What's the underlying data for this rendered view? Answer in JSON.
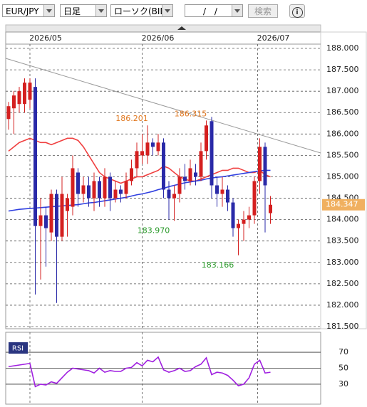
{
  "toolbar": {
    "pair": "EUR/JPY",
    "period": "日足",
    "chart_kind": "ローソク(BID)",
    "date": "/ /",
    "search": "検索",
    "info": "i"
  },
  "chart_data": {
    "type": "candlestick",
    "categories": [
      null,
      null,
      null,
      null,
      null,
      null,
      null,
      null,
      null,
      null,
      null,
      null,
      null,
      null,
      null,
      null,
      null,
      null,
      null,
      null,
      null,
      null,
      null,
      null,
      null,
      null,
      null,
      null,
      null,
      null,
      null,
      null,
      null,
      null,
      null,
      null,
      null,
      null,
      null,
      null,
      null,
      null,
      null,
      null,
      null,
      null,
      null,
      null,
      null,
      null
    ],
    "xticks": [
      {
        "value": 4,
        "label": "2026/05"
      },
      {
        "value": 25,
        "label": "2026/06"
      },
      {
        "value": 46.6,
        "label": "2026/07"
      }
    ],
    "candles": [
      {
        "open": 186.35,
        "high": 186.75,
        "low": 186.1,
        "close": 186.65
      },
      {
        "open": 186.6,
        "high": 187.0,
        "low": 186.0,
        "close": 186.9
      },
      {
        "open": 186.7,
        "high": 187.1,
        "low": 186.5,
        "close": 187.0
      },
      {
        "open": 186.7,
        "high": 187.3,
        "low": 186.5,
        "close": 187.2
      },
      {
        "open": 186.8,
        "high": 187.3,
        "low": 186.6,
        "close": 187.2
      },
      {
        "open": 187.1,
        "high": 187.3,
        "low": 182.25,
        "close": 183.85
      },
      {
        "open": 183.85,
        "high": 184.5,
        "low": 182.6,
        "close": 184.1
      },
      {
        "open": 184.1,
        "high": 184.3,
        "low": 182.9,
        "close": 183.8
      },
      {
        "open": 183.7,
        "high": 184.7,
        "low": 183.5,
        "close": 184.6
      },
      {
        "open": 184.6,
        "high": 184.7,
        "low": 182.052,
        "close": 183.6
      },
      {
        "open": 183.6,
        "high": 185.0,
        "low": 183.5,
        "close": 184.6
      },
      {
        "open": 184.2,
        "high": 184.6,
        "low": 183.6,
        "close": 184.5
      },
      {
        "open": 184.3,
        "high": 185.5,
        "low": 184.1,
        "close": 185.2
      },
      {
        "open": 185.1,
        "high": 185.2,
        "low": 184.3,
        "close": 184.6
      },
      {
        "open": 184.6,
        "high": 185.0,
        "low": 184.4,
        "close": 184.8
      },
      {
        "open": 184.8,
        "high": 185.0,
        "low": 184.3,
        "close": 184.5
      },
      {
        "open": 184.5,
        "high": 185.1,
        "low": 184.2,
        "close": 184.9
      },
      {
        "open": 184.9,
        "high": 185.0,
        "low": 184.3,
        "close": 184.5
      },
      {
        "open": 184.5,
        "high": 185.2,
        "low": 184.3,
        "close": 185.0
      },
      {
        "open": 185.0,
        "high": 185.1,
        "low": 184.2,
        "close": 184.5
      },
      {
        "open": 184.5,
        "high": 184.9,
        "low": 184.4,
        "close": 184.7
      },
      {
        "open": 184.7,
        "high": 184.8,
        "low": 184.4,
        "close": 184.6
      },
      {
        "open": 184.6,
        "high": 185.1,
        "low": 184.5,
        "close": 184.9
      },
      {
        "open": 184.9,
        "high": 185.4,
        "low": 184.8,
        "close": 185.2
      },
      {
        "open": 185.2,
        "high": 185.8,
        "low": 185.0,
        "close": 185.6
      },
      {
        "open": 185.5,
        "high": 186.0,
        "low": 185.3,
        "close": 185.6
      },
      {
        "open": 185.5,
        "high": 186.201,
        "low": 185.3,
        "close": 185.8,
        "high_label": "186.201"
      },
      {
        "open": 185.8,
        "high": 185.9,
        "low": 185.5,
        "close": 185.7
      },
      {
        "open": 185.6,
        "high": 186.0,
        "low": 185.5,
        "close": 185.8
      },
      {
        "open": 185.8,
        "high": 185.9,
        "low": 184.5,
        "close": 184.7
      },
      {
        "open": 184.7,
        "high": 184.9,
        "low": 184.0,
        "close": 184.5
      },
      {
        "open": 184.5,
        "high": 184.8,
        "low": 183.97,
        "close": 184.6,
        "low_label": "183.970"
      },
      {
        "open": 184.6,
        "high": 185.2,
        "low": 184.4,
        "close": 185.0
      },
      {
        "open": 185.0,
        "high": 185.3,
        "low": 184.7,
        "close": 184.9
      },
      {
        "open": 184.9,
        "high": 185.4,
        "low": 184.8,
        "close": 185.2
      },
      {
        "open": 185.1,
        "high": 185.3,
        "low": 184.8,
        "close": 185.0
      },
      {
        "open": 185.0,
        "high": 185.8,
        "low": 184.9,
        "close": 185.6
      },
      {
        "open": 185.6,
        "high": 186.315,
        "low": 185.4,
        "close": 186.2,
        "high_label": "186.315"
      },
      {
        "open": 186.3,
        "high": 186.4,
        "low": 184.5,
        "close": 184.8
      },
      {
        "open": 184.8,
        "high": 185.0,
        "low": 184.3,
        "close": 184.6
      },
      {
        "open": 184.6,
        "high": 185.0,
        "low": 184.3,
        "close": 184.7
      },
      {
        "open": 184.7,
        "high": 184.8,
        "low": 184.2,
        "close": 184.4
      },
      {
        "open": 184.4,
        "high": 184.5,
        "low": 183.6,
        "close": 183.8
      },
      {
        "open": 183.8,
        "high": 184.0,
        "low": 183.166,
        "close": 183.9,
        "low_label": "183.166"
      },
      {
        "open": 183.9,
        "high": 184.2,
        "low": 183.5,
        "close": 184.0
      },
      {
        "open": 184.0,
        "high": 184.3,
        "low": 183.8,
        "close": 184.1
      },
      {
        "open": 184.1,
        "high": 185.0,
        "low": 183.9,
        "close": 184.9
      },
      {
        "open": 184.9,
        "high": 185.9,
        "low": 184.6,
        "close": 185.7
      },
      {
        "open": 185.7,
        "high": 185.8,
        "low": 183.7,
        "close": 184.8
      },
      {
        "open": 184.15,
        "high": 184.55,
        "low": 183.9,
        "close": 184.347
      }
    ],
    "up_color": "#d42020",
    "down_color": "#2a2aa8",
    "series": [
      {
        "color": "#f04040",
        "values": [
          185.6,
          185.7,
          185.8,
          185.85,
          185.9,
          185.85,
          185.8,
          185.8,
          185.75,
          185.8,
          185.85,
          185.9,
          185.9,
          185.85,
          185.7,
          185.5,
          185.3,
          185.1,
          185.0,
          184.95,
          184.9,
          184.85,
          184.9,
          184.95,
          185.0,
          185.0,
          185.05,
          185.1,
          185.15,
          185.25,
          185.2,
          185.1,
          185.0,
          184.95,
          184.9,
          184.9,
          184.95,
          185.0,
          185.05,
          185.1,
          185.15,
          185.15,
          185.2,
          185.2,
          185.15,
          185.1,
          185.1,
          185.15,
          185.05,
          185.0
        ]
      },
      {
        "color": "#3040e0",
        "values": [
          184.2,
          184.22,
          184.24,
          184.25,
          184.26,
          184.27,
          184.28,
          184.29,
          184.3,
          184.31,
          184.32,
          184.33,
          184.34,
          184.35,
          184.37,
          184.39,
          184.4,
          184.42,
          184.44,
          184.46,
          184.48,
          184.5,
          184.52,
          184.55,
          184.58,
          184.6,
          184.63,
          184.66,
          184.7,
          184.73,
          184.77,
          184.8,
          184.83,
          184.86,
          184.88,
          184.9,
          184.92,
          184.95,
          184.97,
          184.99,
          185.0,
          185.02,
          185.04,
          185.06,
          185.08,
          185.1,
          185.12,
          185.14,
          185.15,
          185.15
        ]
      }
    ],
    "ylim": [
      181.45,
      188.1
    ],
    "yticks": [
      {
        "value": 188,
        "label": "188.000"
      },
      {
        "value": 187.5,
        "label": "187.500"
      },
      {
        "value": 187,
        "label": "187.000"
      },
      {
        "value": 186.5,
        "label": "186.500"
      },
      {
        "value": 186,
        "label": "186.000"
      },
      {
        "value": 185.5,
        "label": "185.500"
      },
      {
        "value": 185,
        "label": "185.000"
      },
      {
        "value": 184.5,
        "label": "184.500"
      },
      {
        "value": 184,
        "label": "184.000"
      },
      {
        "value": 183.5,
        "label": "183.500"
      },
      {
        "value": 183,
        "label": "183.000"
      },
      {
        "value": 182.5,
        "label": "182.500"
      },
      {
        "value": 182,
        "label": "182.000"
      },
      {
        "value": 181.5,
        "label": "181.500"
      }
    ],
    "grid": true,
    "indicator": {
      "title": "RSI",
      "color": "#a020e0",
      "values": [
        52,
        53,
        54,
        55,
        56,
        27,
        30,
        29,
        33,
        31,
        38,
        45,
        50,
        49,
        48,
        47,
        44,
        50,
        45,
        47,
        46,
        46,
        50,
        51,
        57,
        53,
        60,
        58,
        64,
        48,
        45,
        47,
        50,
        46,
        47,
        52,
        55,
        63,
        42,
        45,
        44,
        41,
        35,
        28,
        30,
        38,
        55,
        60,
        44,
        45
      ],
      "ylim": [
        5,
        95
      ],
      "yticks": [
        70,
        50,
        30
      ]
    }
  }
}
